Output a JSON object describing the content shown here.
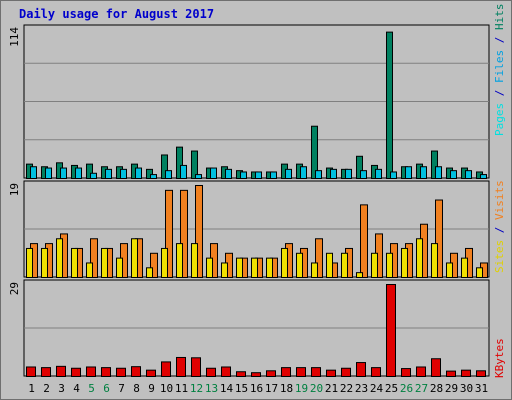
{
  "title": "Daily usage for August 2017",
  "colors": {
    "hits": "#008060",
    "files": "#00c0e0",
    "pages": "#00e0e0",
    "visits": "#f08020",
    "sites": "#f0e000",
    "kbytes": "#e00000",
    "weekend_label": "#008040",
    "weekday_label": "#000000",
    "label_blue": "#0000c0",
    "panel_bg": "#c0c0c0"
  },
  "chart_data": [
    {
      "type": "bar",
      "panel": "hits-files-pages",
      "ymax_label": "114",
      "ylim": [
        0,
        114
      ],
      "legend": [
        "Pages",
        "Files",
        "Hits"
      ],
      "x": [
        1,
        2,
        3,
        4,
        5,
        6,
        7,
        8,
        9,
        10,
        11,
        12,
        13,
        14,
        15,
        16,
        17,
        18,
        19,
        20,
        21,
        22,
        23,
        24,
        25,
        26,
        27,
        28,
        29,
        30,
        31
      ],
      "series": [
        {
          "name": "Hits",
          "values": [
            11,
            9,
            12,
            10,
            11,
            9,
            9,
            11,
            7,
            18,
            24,
            21,
            8,
            9,
            6,
            5,
            5,
            11,
            11,
            40,
            8,
            7,
            17,
            10,
            112,
            9,
            11,
            21,
            8,
            8,
            5
          ]
        },
        {
          "name": "Files",
          "values": [
            9,
            8,
            8,
            8,
            4,
            7,
            7,
            8,
            3,
            6,
            10,
            3,
            8,
            7,
            5,
            5,
            5,
            7,
            9,
            6,
            7,
            7,
            6,
            7,
            5,
            9,
            9,
            9,
            6,
            6,
            3
          ]
        },
        {
          "name": "Pages",
          "values": [
            0,
            0,
            0,
            0,
            0,
            0,
            0,
            0,
            0,
            0,
            0,
            0,
            0,
            0,
            0,
            0,
            0,
            0,
            0,
            0,
            0,
            0,
            0,
            0,
            0,
            0,
            0,
            0,
            0,
            0,
            0
          ]
        }
      ]
    },
    {
      "type": "bar",
      "panel": "visits-sites",
      "ymax_label": "19",
      "ylim": [
        0,
        19
      ],
      "legend": [
        "Sites",
        "Visits"
      ],
      "x": [
        1,
        2,
        3,
        4,
        5,
        6,
        7,
        8,
        9,
        10,
        11,
        12,
        13,
        14,
        15,
        16,
        17,
        18,
        19,
        20,
        21,
        22,
        23,
        24,
        25,
        26,
        27,
        28,
        29,
        30,
        31
      ],
      "series": [
        {
          "name": "Visits",
          "values": [
            7,
            7,
            9,
            6,
            8,
            6,
            7,
            8,
            5,
            18,
            18,
            19,
            7,
            5,
            4,
            4,
            4,
            7,
            6,
            8,
            3,
            6,
            15,
            9,
            7,
            7,
            11,
            16,
            5,
            6,
            3
          ]
        },
        {
          "name": "Sites",
          "values": [
            6,
            6,
            8,
            6,
            3,
            6,
            4,
            8,
            2,
            6,
            7,
            7,
            4,
            3,
            4,
            4,
            4,
            6,
            5,
            3,
            5,
            5,
            1,
            5,
            5,
            6,
            8,
            7,
            3,
            4,
            2
          ]
        }
      ]
    },
    {
      "type": "bar",
      "panel": "kbytes",
      "ymax_label": "29",
      "ylim": [
        0,
        29
      ],
      "legend": [
        "KBytes"
      ],
      "x": [
        1,
        2,
        3,
        4,
        5,
        6,
        7,
        8,
        9,
        10,
        11,
        12,
        13,
        14,
        15,
        16,
        17,
        18,
        19,
        20,
        21,
        22,
        23,
        24,
        25,
        26,
        27,
        28,
        29,
        30,
        31
      ],
      "series": [
        {
          "name": "KBytes",
          "values": [
            3,
            2.8,
            3.2,
            2.6,
            3,
            2.8,
            2.6,
            3.1,
            2,
            4.6,
            6,
            5.9,
            2.6,
            3,
            1.5,
            1.2,
            1.8,
            2.8,
            2.8,
            2.8,
            2,
            2.6,
            4.4,
            2.8,
            29,
            2.5,
            3,
            5.6,
            1.7,
            2,
            1.8
          ]
        }
      ]
    }
  ],
  "day_labels": [
    "1",
    "2",
    "3",
    "4",
    "5",
    "6",
    "7",
    "8",
    "9",
    "10",
    "11",
    "12",
    "13",
    "14",
    "15",
    "16",
    "17",
    "18",
    "19",
    "20",
    "21",
    "22",
    "23",
    "24",
    "25",
    "26",
    "27",
    "28",
    "29",
    "30",
    "31"
  ],
  "weekend_days": [
    5,
    6,
    12,
    13,
    19,
    20,
    26,
    27
  ],
  "side_labels": {
    "panel1": [
      {
        "text": "Pages",
        "color": "#00e0e0"
      },
      {
        "text": " / ",
        "color": "#0000c0"
      },
      {
        "text": "Files",
        "color": "#00a0e0"
      },
      {
        "text": " / ",
        "color": "#0000c0"
      },
      {
        "text": "Hits",
        "color": "#008060"
      }
    ],
    "panel2": [
      {
        "text": "Sites",
        "color": "#e0d000"
      },
      {
        "text": " / ",
        "color": "#0000c0"
      },
      {
        "text": "Visits",
        "color": "#f08020"
      }
    ],
    "panel3": [
      {
        "text": "KBytes",
        "color": "#e00000"
      }
    ]
  }
}
